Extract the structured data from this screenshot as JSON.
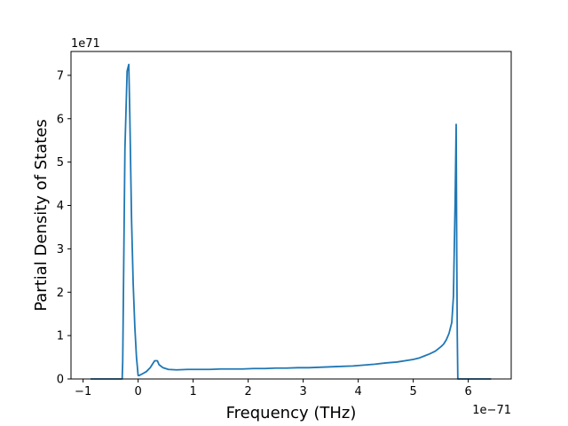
{
  "chart_data": {
    "type": "line",
    "xlabel": "Frequency (THz)",
    "ylabel": "Partial Density of States",
    "x_offset_label": "1e−71",
    "y_offset_label": "1e71",
    "xlim": [
      -1.22,
      6.78
    ],
    "ylim": [
      0,
      7.55
    ],
    "x_ticks": [
      -1,
      0,
      1,
      2,
      3,
      4,
      5,
      6
    ],
    "x_tick_labels": [
      "−1",
      "0",
      "1",
      "2",
      "3",
      "4",
      "5",
      "6"
    ],
    "y_ticks": [
      0,
      1,
      2,
      3,
      4,
      5,
      6,
      7
    ],
    "y_tick_labels": [
      "0",
      "1",
      "2",
      "3",
      "4",
      "5",
      "6",
      "7"
    ],
    "grid": false,
    "series": [
      {
        "color": "#1f77b4",
        "x": [
          -0.85,
          -0.29,
          -0.28,
          -0.24,
          -0.2,
          -0.17,
          -0.15,
          -0.12,
          -0.09,
          -0.06,
          -0.03,
          0.0,
          0.02,
          0.08,
          0.15,
          0.22,
          0.3,
          0.35,
          0.38,
          0.45,
          0.55,
          0.7,
          0.9,
          1.1,
          1.3,
          1.5,
          1.7,
          1.9,
          2.1,
          2.3,
          2.5,
          2.7,
          2.9,
          3.1,
          3.3,
          3.5,
          3.7,
          3.9,
          4.1,
          4.3,
          4.5,
          4.7,
          4.9,
          5.0,
          5.1,
          5.2,
          5.3,
          5.4,
          5.5,
          5.55,
          5.6,
          5.65,
          5.7,
          5.73,
          5.76,
          5.78,
          5.79,
          5.8,
          5.81,
          5.83,
          6.4
        ],
        "y": [
          0.0,
          0.0,
          0.4,
          5.3,
          7.1,
          7.25,
          6.0,
          3.7,
          2.2,
          1.2,
          0.5,
          0.08,
          0.08,
          0.12,
          0.17,
          0.26,
          0.42,
          0.42,
          0.33,
          0.26,
          0.22,
          0.21,
          0.22,
          0.22,
          0.22,
          0.23,
          0.23,
          0.23,
          0.24,
          0.24,
          0.25,
          0.25,
          0.26,
          0.26,
          0.27,
          0.28,
          0.29,
          0.3,
          0.32,
          0.34,
          0.37,
          0.39,
          0.43,
          0.45,
          0.48,
          0.53,
          0.58,
          0.64,
          0.74,
          0.8,
          0.9,
          1.05,
          1.3,
          1.9,
          4.0,
          5.87,
          3.0,
          1.0,
          0.0,
          0.0,
          0.0
        ]
      }
    ]
  }
}
